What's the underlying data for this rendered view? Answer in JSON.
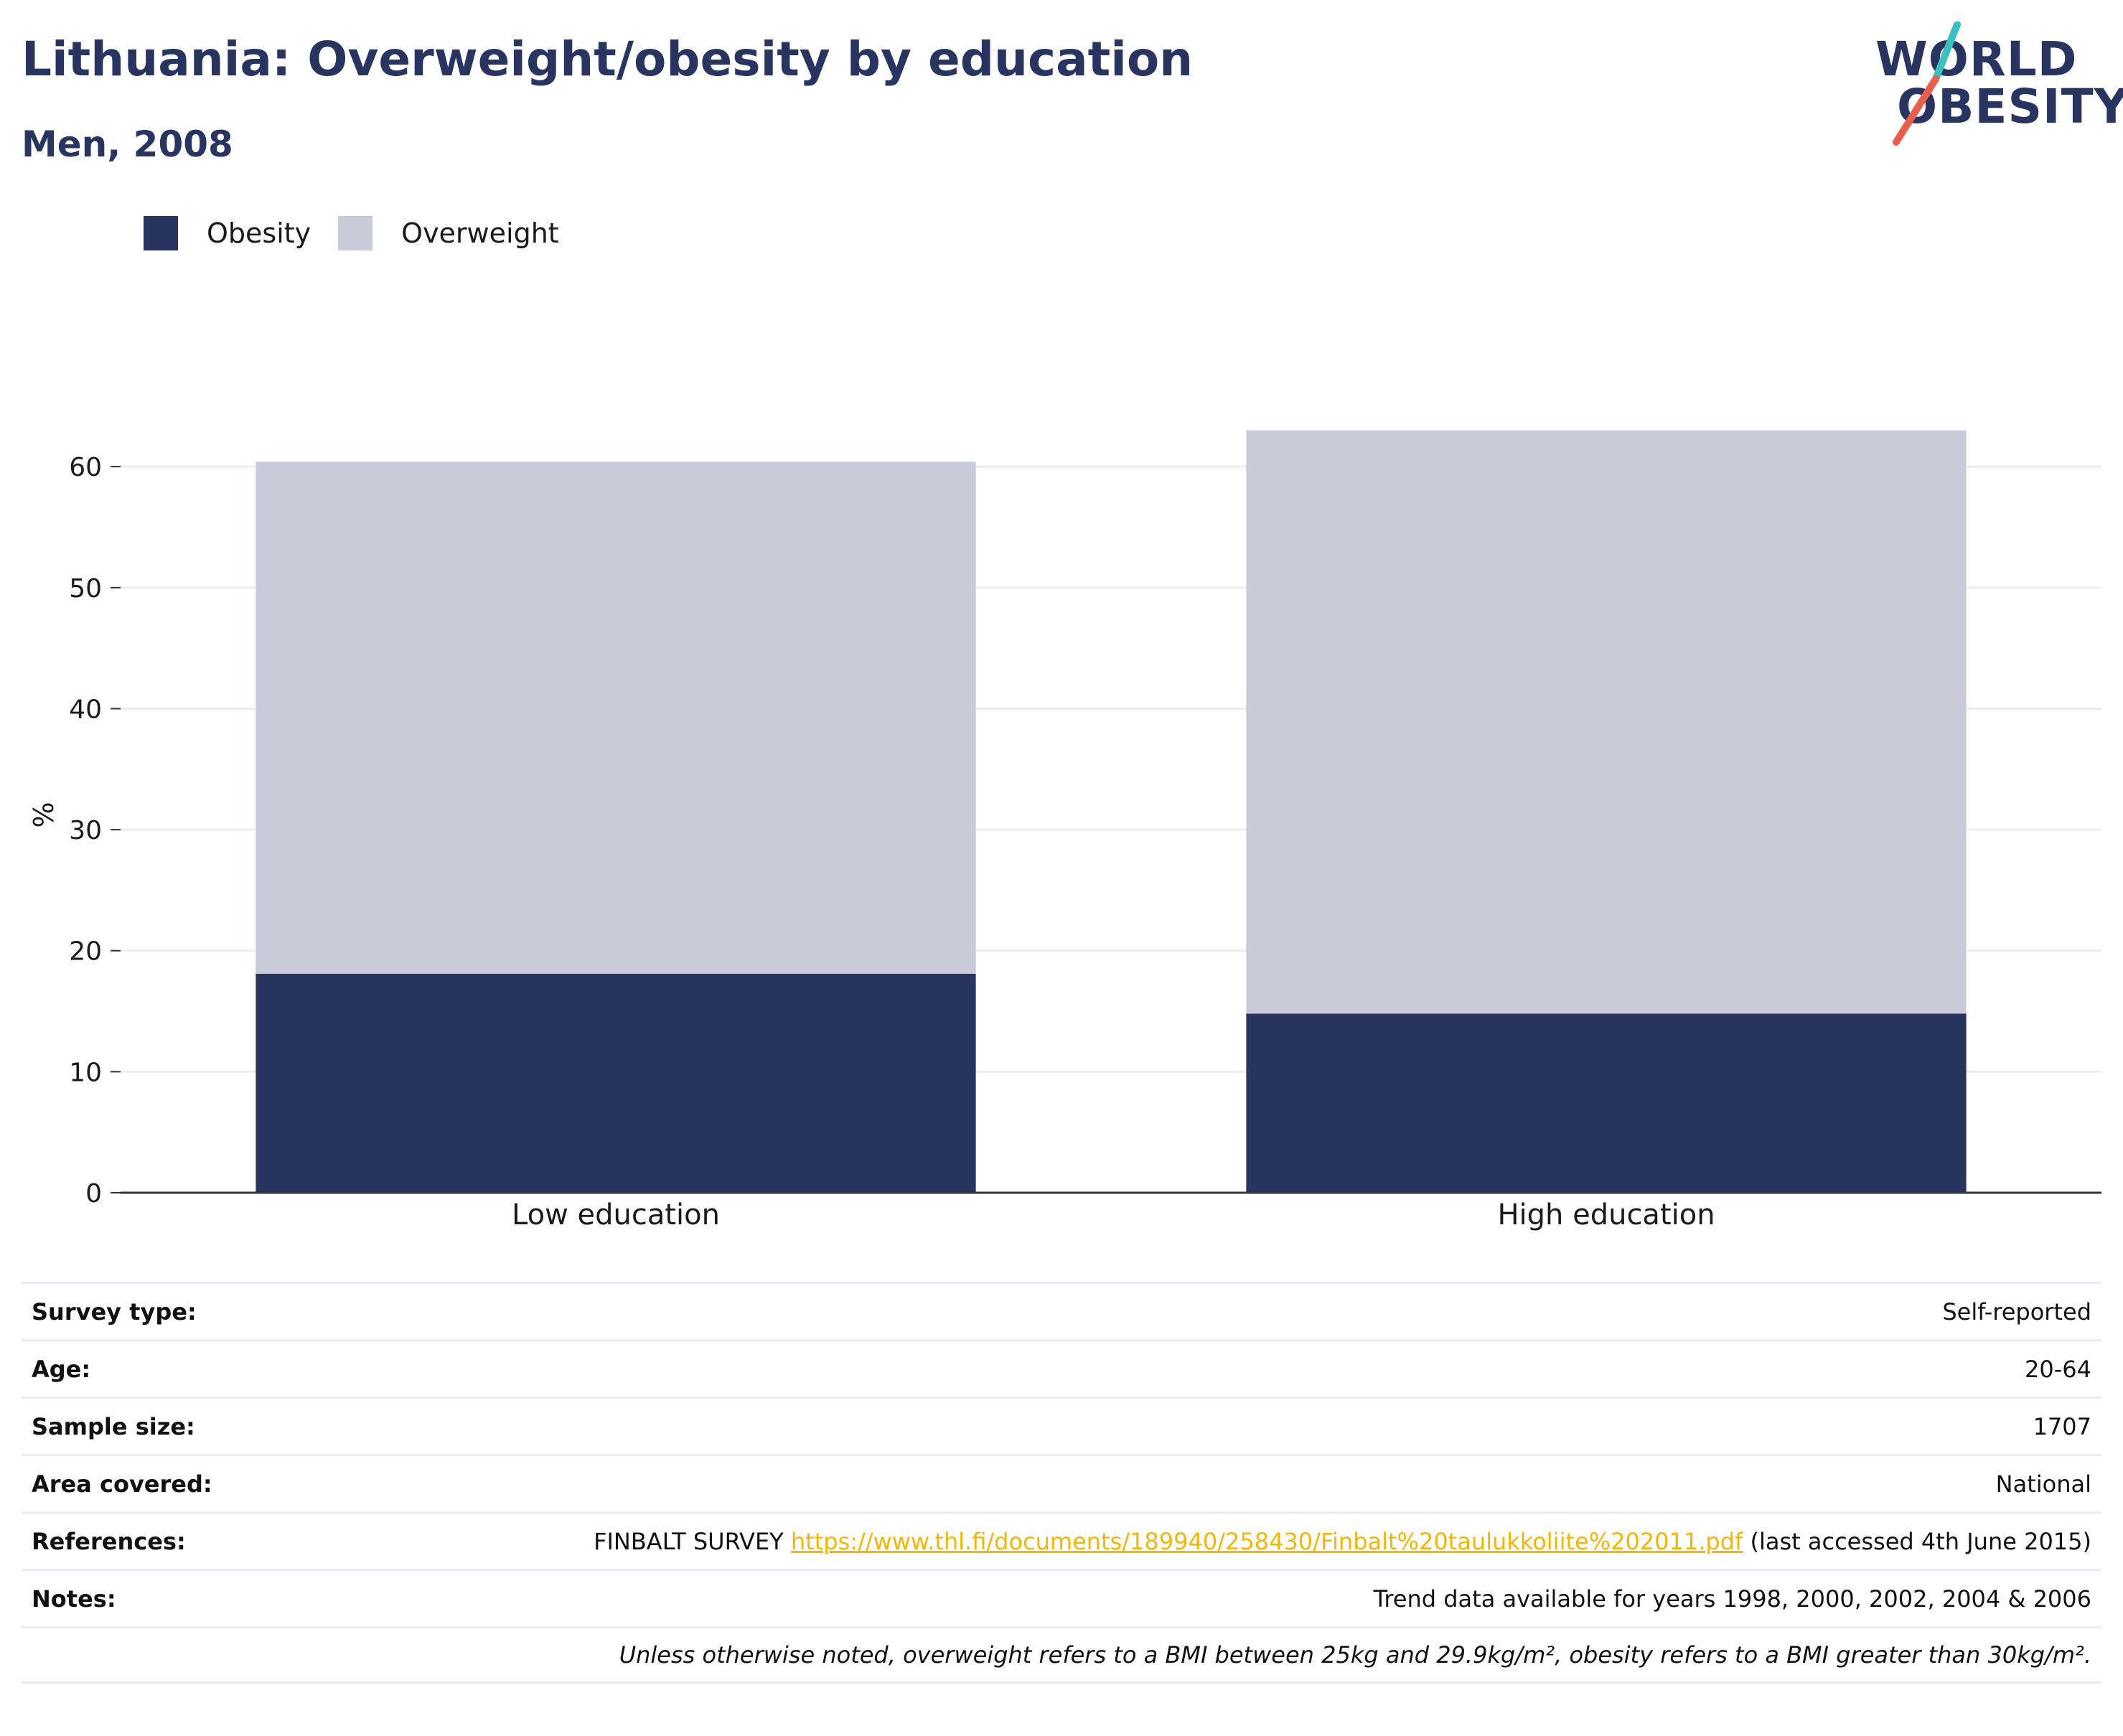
{
  "header": {
    "title": "Lithuania: Overweight/obesity by education",
    "subtitle": "Men, 2008"
  },
  "logo": {
    "line1": "WORLD",
    "line2": "OBESITY",
    "colors": {
      "text": "#283560",
      "slash_top": "#3bbfbf",
      "slash_bottom": "#e8604c"
    }
  },
  "legend": [
    {
      "label": "Obesity",
      "color": "#283560"
    },
    {
      "label": "Overweight",
      "color": "#c9ccd8"
    }
  ],
  "chart_data": {
    "type": "bar",
    "stacked": true,
    "categories": [
      "Low education",
      "High education"
    ],
    "series": [
      {
        "name": "Obesity",
        "color": "#283560",
        "values": [
          18.1,
          14.8
        ]
      },
      {
        "name": "Overweight",
        "color": "#c9ccd8",
        "values": [
          42.3,
          48.2
        ]
      }
    ],
    "ylabel": "%",
    "ylim": [
      0,
      66
    ],
    "yticks": [
      0,
      10,
      20,
      30,
      40,
      50,
      60
    ],
    "grid": true,
    "legend_position": "top-left"
  },
  "info": {
    "rows": [
      {
        "key": "Survey type:",
        "value": "Self-reported"
      },
      {
        "key": "Age:",
        "value": "20-64"
      },
      {
        "key": "Sample size:",
        "value": "1707"
      },
      {
        "key": "Area covered:",
        "value": "National"
      }
    ],
    "references": {
      "key": "References:",
      "prefix": "FINBALT SURVEY ",
      "link": "https://www.thl.fi/documents/189940/258430/Finbalt%20taulukkoliite%202011.pdf",
      "suffix": " (last accessed 4th June 2015)"
    },
    "notes": {
      "key": "Notes:",
      "value": "Trend data available for years 1998, 2000, 2002, 2004 & 2006"
    },
    "footnote": "Unless otherwise noted, overweight refers to a BMI between 25kg and 29.9kg/m², obesity refers to a BMI greater than 30kg/m²."
  }
}
